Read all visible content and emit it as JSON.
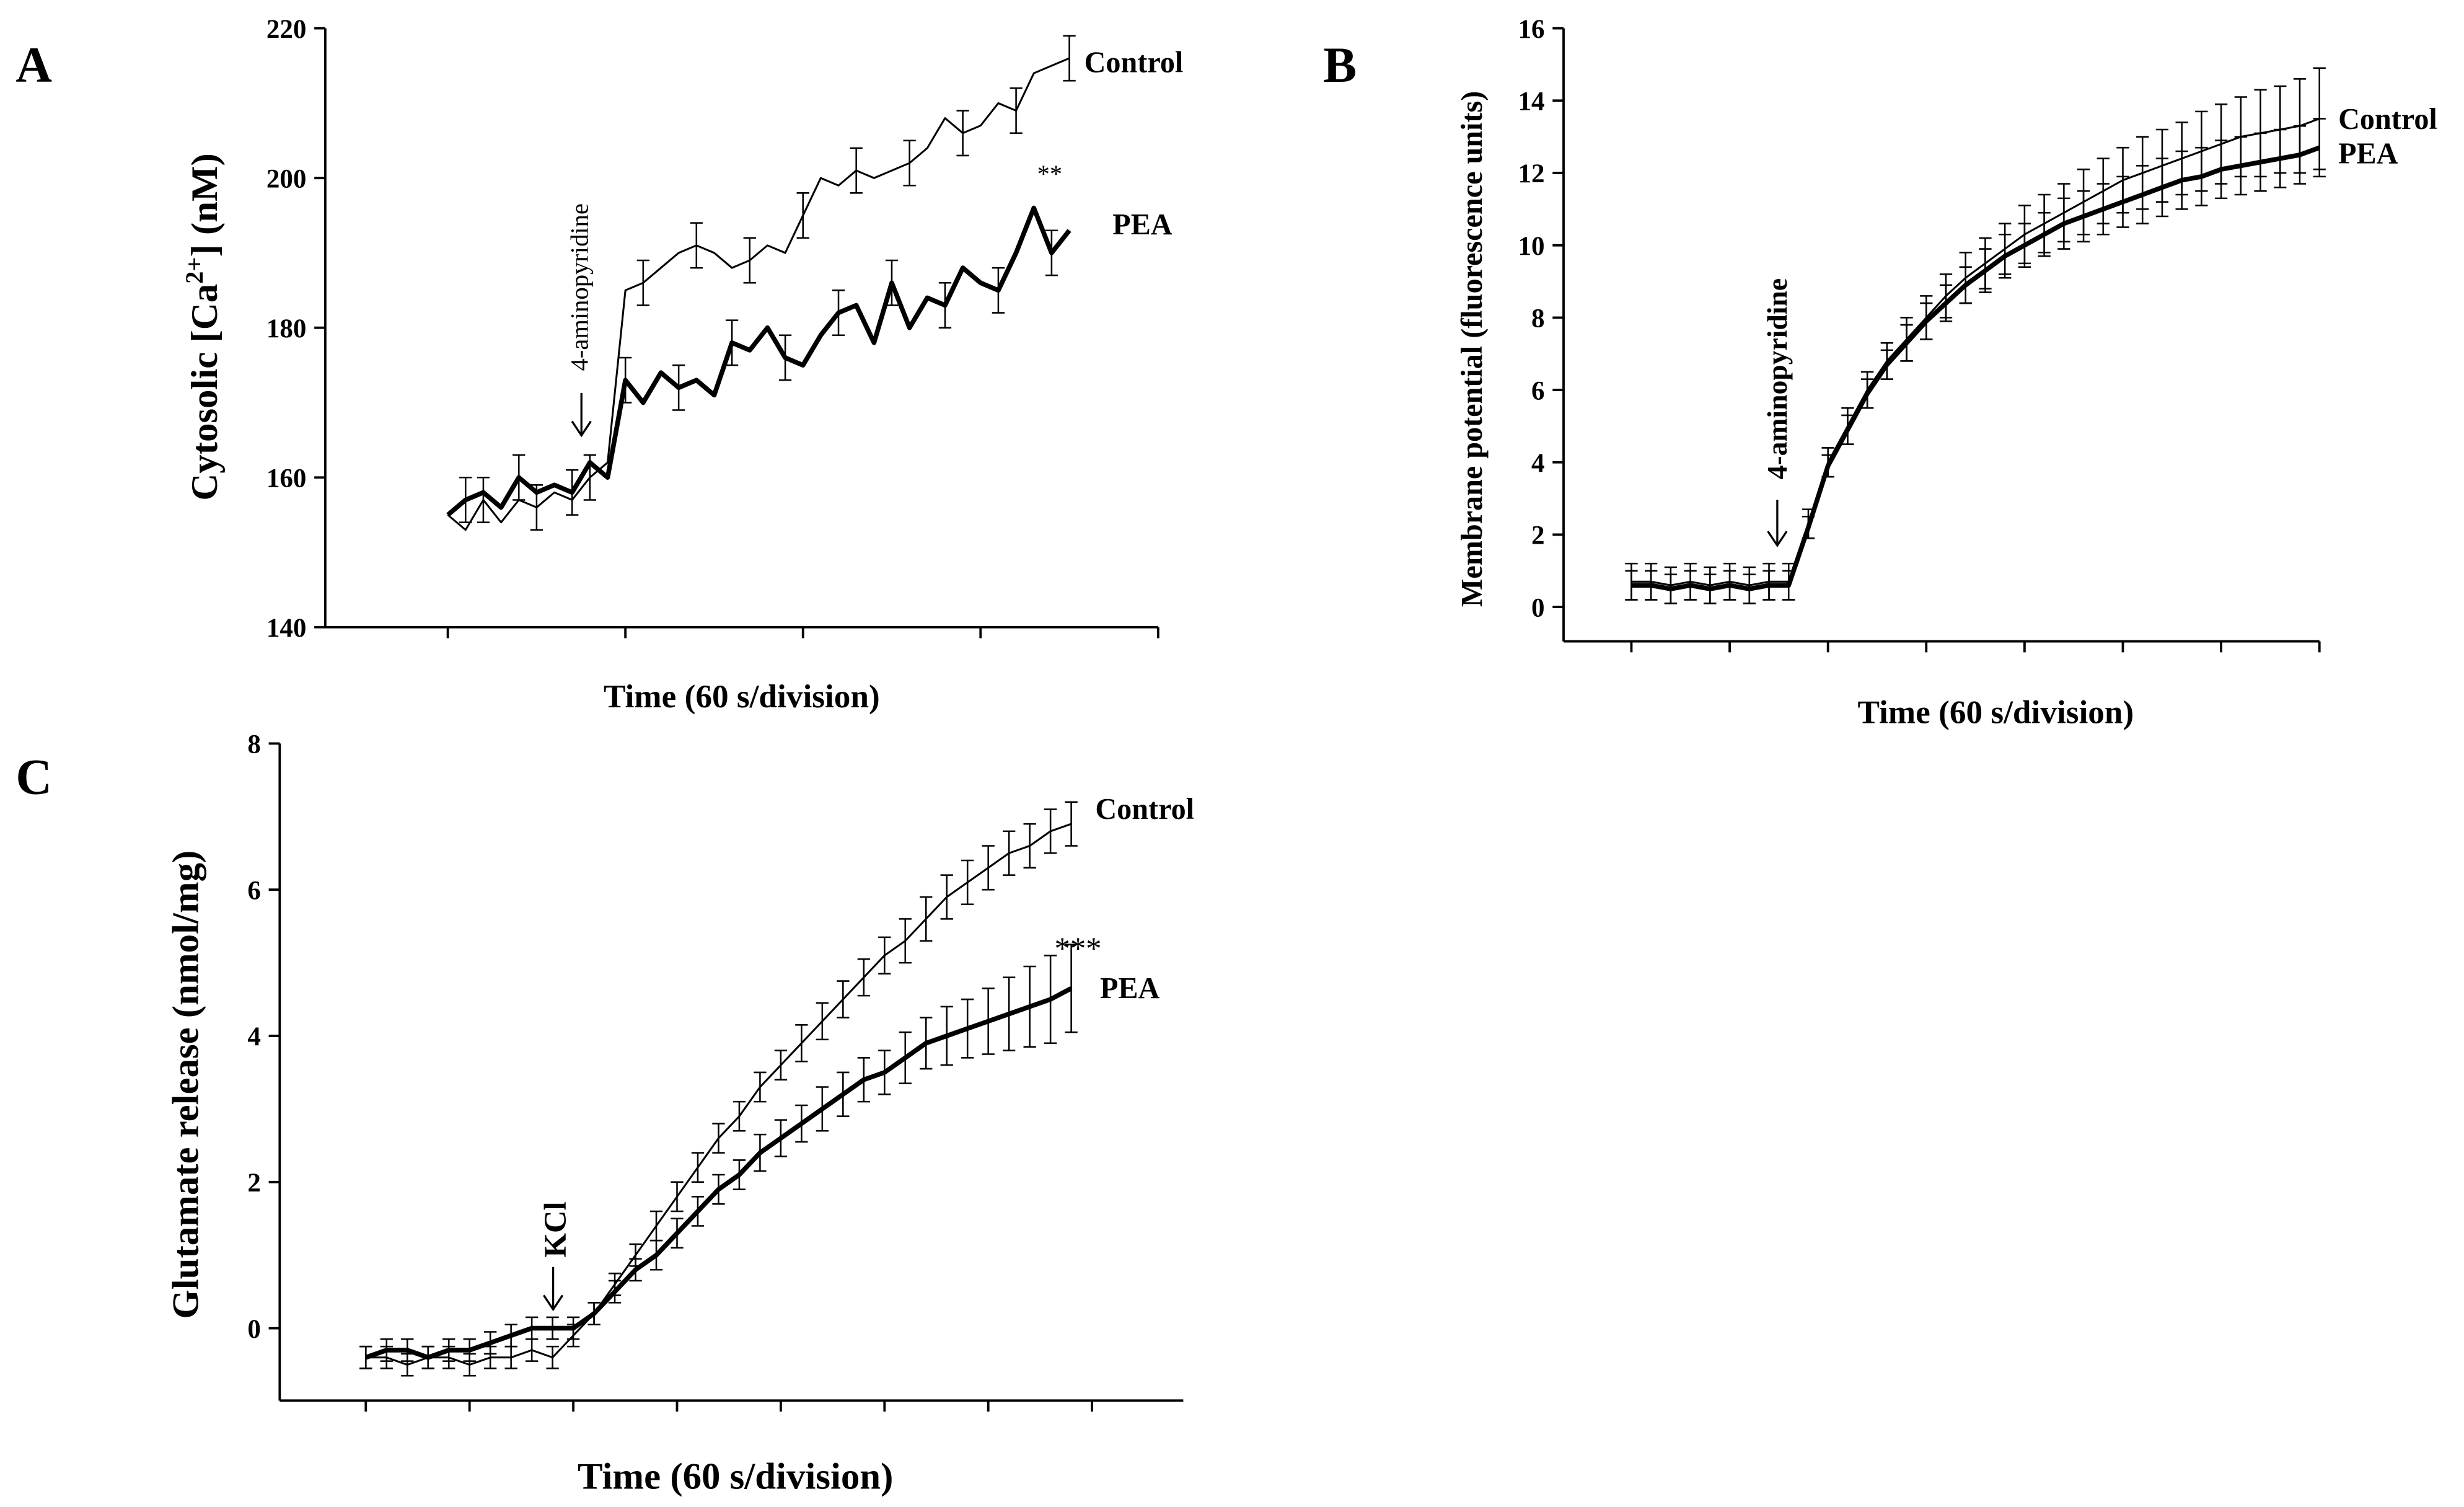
{
  "chart_data": [
    {
      "type": "line",
      "panel": "A",
      "ylabel": "Cytosolic [Ca",
      "ylabel_sup": "2+",
      "ylabel_end": "] (nM)",
      "xlabel": "Time (60 s/division)",
      "annotations": [
        "4-aminopyridine",
        "**"
      ],
      "x": [
        0,
        0.1,
        0.2,
        0.3,
        0.4,
        0.5,
        0.6,
        0.7,
        0.8,
        0.9,
        1.0,
        1.1,
        1.2,
        1.3,
        1.4,
        1.5,
        1.6,
        1.7,
        1.8,
        1.9,
        2.0,
        2.1,
        2.2,
        2.3,
        2.4,
        2.5,
        2.6,
        2.7,
        2.8,
        2.9,
        3.0,
        3.1,
        3.2,
        3.3,
        3.4,
        3.5
      ],
      "xlim": [
        -0.69,
        4
      ],
      "xticks": [
        0,
        1,
        2,
        3,
        4
      ],
      "ylim": [
        140,
        220
      ],
      "yticks": [
        140,
        160,
        180,
        200,
        220
      ],
      "series": [
        {
          "name": "Control",
          "color": "#000000",
          "line_width": 1.2,
          "values": [
            155,
            153,
            157,
            154,
            157,
            156,
            158,
            157,
            160,
            162,
            185,
            186,
            188,
            190,
            191,
            190,
            188,
            189,
            191,
            190,
            195,
            200,
            199,
            201,
            200,
            201,
            202,
            204,
            208,
            206,
            207,
            210,
            209,
            214,
            215,
            216
          ],
          "errors": [
            null,
            null,
            3,
            null,
            null,
            3,
            null,
            null,
            3,
            null,
            null,
            3,
            null,
            null,
            3,
            null,
            null,
            3,
            null,
            null,
            3,
            null,
            null,
            3,
            null,
            null,
            3,
            null,
            null,
            3,
            null,
            null,
            3,
            null,
            null,
            3
          ]
        },
        {
          "name": "PEA",
          "color": "#000000",
          "line_width": 3,
          "values": [
            155,
            157,
            158,
            156,
            160,
            158,
            159,
            158,
            162,
            160,
            173,
            170,
            174,
            172,
            173,
            171,
            178,
            177,
            180,
            176,
            175,
            179,
            182,
            183,
            178,
            186,
            180,
            184,
            183,
            188,
            186,
            185,
            190,
            196,
            190,
            193
          ],
          "errors": [
            null,
            3,
            null,
            null,
            3,
            null,
            null,
            3,
            null,
            null,
            3,
            null,
            null,
            3,
            null,
            null,
            3,
            null,
            null,
            3,
            null,
            null,
            3,
            null,
            null,
            3,
            null,
            null,
            3,
            null,
            null,
            3,
            null,
            null,
            3,
            null
          ]
        }
      ]
    },
    {
      "type": "line",
      "panel": "B",
      "ylabel": "Membrane potential (fluorescence units)",
      "xlabel": "Time (60 s/division)",
      "annotations": [
        "4-aminopyridine"
      ],
      "x": [
        0,
        0.2,
        0.4,
        0.6,
        0.8,
        1.0,
        1.2,
        1.4,
        1.6,
        1.8,
        2.0,
        2.2,
        2.4,
        2.6,
        2.8,
        3.0,
        3.2,
        3.4,
        3.6,
        3.8,
        4.0,
        4.2,
        4.4,
        4.6,
        4.8,
        5.0,
        5.2,
        5.4,
        5.6,
        5.8,
        6.0,
        6.2,
        6.4,
        6.6,
        6.8,
        7.0
      ],
      "xlim": [
        -0.69,
        7
      ],
      "xticks": [
        0,
        1,
        2,
        3,
        4,
        5,
        6,
        7
      ],
      "ylim": [
        -0.95,
        16
      ],
      "yticks": [
        0,
        2,
        4,
        6,
        8,
        10,
        12,
        14,
        16
      ],
      "series": [
        {
          "name": "Control",
          "color": "#000000",
          "line_width": 1.2,
          "values": [
            0.7,
            0.7,
            0.6,
            0.7,
            0.6,
            0.7,
            0.6,
            0.7,
            0.7,
            2.3,
            4.0,
            5.0,
            6.0,
            6.8,
            7.4,
            8.0,
            8.6,
            9.1,
            9.5,
            9.9,
            10.3,
            10.6,
            10.9,
            11.2,
            11.5,
            11.8,
            12.0,
            12.2,
            12.4,
            12.6,
            12.8,
            13.0,
            13.1,
            13.2,
            13.3,
            13.5
          ],
          "errors": [
            0.5,
            0.5,
            0.5,
            0.5,
            0.5,
            0.5,
            0.5,
            0.5,
            0.5,
            0.4,
            0.4,
            0.5,
            0.5,
            0.5,
            0.6,
            0.6,
            0.6,
            0.7,
            0.7,
            0.7,
            0.8,
            0.8,
            0.8,
            0.9,
            0.9,
            0.9,
            1.0,
            1.0,
            1.0,
            1.1,
            1.1,
            1.1,
            1.2,
            1.2,
            1.3,
            1.4
          ]
        },
        {
          "name": "PEA",
          "color": "#000000",
          "line_width": 3,
          "values": [
            0.6,
            0.6,
            0.5,
            0.6,
            0.5,
            0.6,
            0.5,
            0.6,
            0.6,
            2.2,
            3.9,
            4.9,
            5.9,
            6.7,
            7.3,
            7.9,
            8.4,
            8.9,
            9.3,
            9.7,
            10.0,
            10.3,
            10.6,
            10.8,
            11.0,
            11.2,
            11.4,
            11.6,
            11.8,
            11.9,
            12.1,
            12.2,
            12.3,
            12.4,
            12.5,
            12.7
          ],
          "errors": [
            0.4,
            0.4,
            0.4,
            0.4,
            0.4,
            0.4,
            0.4,
            0.4,
            0.4,
            0.3,
            0.3,
            0.4,
            0.4,
            0.4,
            0.5,
            0.5,
            0.5,
            0.5,
            0.6,
            0.6,
            0.6,
            0.6,
            0.7,
            0.7,
            0.7,
            0.7,
            0.8,
            0.8,
            0.8,
            0.8,
            0.8,
            0.8,
            0.8,
            0.8,
            0.8,
            0.8
          ]
        }
      ]
    },
    {
      "type": "line",
      "panel": "C",
      "ylabel": "Glutamate release (nmol/mg)",
      "xlabel": "Time (60 s/division)",
      "annotations": [
        "KCl",
        "***"
      ],
      "x": [
        0,
        0.2,
        0.4,
        0.6,
        0.8,
        1.0,
        1.2,
        1.4,
        1.6,
        1.8,
        2.0,
        2.2,
        2.4,
        2.6,
        2.8,
        3.0,
        3.2,
        3.4,
        3.6,
        3.8,
        4.0,
        4.2,
        4.4,
        4.6,
        4.8,
        5.0,
        5.2,
        5.4,
        5.6,
        5.8,
        6.0,
        6.2,
        6.4,
        6.6,
        6.8
      ],
      "xlim": [
        -0.83,
        7.88
      ],
      "xticks": [
        0,
        1,
        2,
        3,
        4,
        5,
        6,
        7
      ],
      "ylim": [
        -0.99,
        8
      ],
      "yticks": [
        0,
        2,
        4,
        6,
        8
      ],
      "series": [
        {
          "name": "Control",
          "color": "#000000",
          "line_width": 1.2,
          "values": [
            -0.4,
            -0.4,
            -0.5,
            -0.4,
            -0.4,
            -0.5,
            -0.4,
            -0.4,
            -0.3,
            -0.4,
            -0.1,
            0.2,
            0.6,
            1.0,
            1.4,
            1.8,
            2.2,
            2.6,
            2.9,
            3.3,
            3.6,
            3.9,
            4.2,
            4.5,
            4.8,
            5.1,
            5.3,
            5.6,
            5.9,
            6.1,
            6.3,
            6.5,
            6.6,
            6.8,
            6.9
          ],
          "errors": [
            0.15,
            0.15,
            0.15,
            0.15,
            0.15,
            0.15,
            0.15,
            0.15,
            0.15,
            0.15,
            0.15,
            0.15,
            0.15,
            0.15,
            0.2,
            0.2,
            0.2,
            0.2,
            0.2,
            0.2,
            0.2,
            0.25,
            0.25,
            0.25,
            0.25,
            0.25,
            0.3,
            0.3,
            0.3,
            0.3,
            0.3,
            0.3,
            0.3,
            0.3,
            0.3
          ]
        },
        {
          "name": "PEA",
          "color": "#000000",
          "line_width": 3,
          "values": [
            -0.4,
            -0.3,
            -0.3,
            -0.4,
            -0.3,
            -0.3,
            -0.2,
            -0.1,
            0.0,
            0.0,
            0.0,
            0.2,
            0.5,
            0.8,
            1.0,
            1.3,
            1.6,
            1.9,
            2.1,
            2.4,
            2.6,
            2.8,
            3.0,
            3.2,
            3.4,
            3.5,
            3.7,
            3.9,
            4.0,
            4.1,
            4.2,
            4.3,
            4.4,
            4.5,
            4.65
          ],
          "errors": [
            0.15,
            0.15,
            0.15,
            0.15,
            0.15,
            0.15,
            0.15,
            0.15,
            0.15,
            0.15,
            0.15,
            0.15,
            0.15,
            0.15,
            0.2,
            0.2,
            0.2,
            0.2,
            0.2,
            0.25,
            0.25,
            0.25,
            0.3,
            0.3,
            0.3,
            0.3,
            0.35,
            0.35,
            0.4,
            0.4,
            0.45,
            0.5,
            0.55,
            0.6,
            0.6
          ]
        }
      ]
    }
  ]
}
